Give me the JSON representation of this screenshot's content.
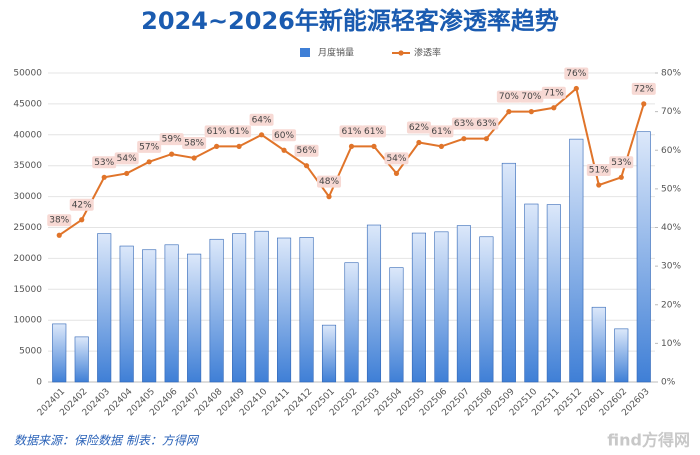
{
  "chart_data": {
    "type": "combo",
    "title": "2024~2026年新能源轻客渗透率趋势",
    "source": "数据来源：保险数据 制表：方得网",
    "watermark": "find方得网",
    "categories": [
      "202401",
      "202402",
      "202403",
      "202404",
      "202405",
      "202406",
      "202407",
      "202408",
      "202409",
      "202410",
      "202411",
      "202412",
      "202501",
      "202502",
      "202503",
      "202504",
      "202505",
      "202506",
      "202507",
      "202508",
      "202509",
      "202510",
      "202511",
      "202512",
      "202601",
      "202602",
      "202603"
    ],
    "series": [
      {
        "name": "月度销量",
        "type": "bar",
        "axis": "y",
        "color": "#3f7fd6",
        "values": [
          9400,
          7300,
          24000,
          22000,
          21400,
          22200,
          20700,
          23100,
          24000,
          24400,
          23300,
          23400,
          9200,
          19300,
          25400,
          18500,
          24100,
          24300,
          25300,
          23500,
          35400,
          28800,
          28700,
          39300,
          12100,
          8600,
          40500
        ]
      },
      {
        "name": "渗透率",
        "type": "line",
        "axis": "y2",
        "color": "#e0742a",
        "values": [
          38,
          42,
          53,
          54,
          57,
          59,
          58,
          61,
          61,
          64,
          60,
          56,
          48,
          61,
          61,
          54,
          62,
          61,
          63,
          63,
          70,
          70,
          71,
          76,
          51,
          53,
          72
        ],
        "value_labels": [
          "38%",
          "42%",
          "53%",
          "54%",
          "57%",
          "59%",
          "58%",
          "61%",
          "61%",
          "64%",
          "60%",
          "56%",
          "48%",
          "61%",
          "61%",
          "54%",
          "62%",
          "61%",
          "63%",
          "63%",
          "70%",
          "70%",
          "71%",
          "76%",
          "51%",
          "53%",
          "72%"
        ]
      }
    ],
    "ylim": [
      0,
      50000
    ],
    "yticks": [
      0,
      5000,
      10000,
      15000,
      20000,
      25000,
      30000,
      35000,
      40000,
      45000,
      50000
    ],
    "y2lim": [
      0,
      80
    ],
    "y2ticks": [
      {
        "value": 0,
        "label": "0%"
      },
      {
        "value": 10,
        "label": "10%"
      },
      {
        "value": 20,
        "label": "20%"
      },
      {
        "value": 30,
        "label": "30%"
      },
      {
        "value": 40,
        "label": "40%"
      },
      {
        "value": 50,
        "label": "50%"
      },
      {
        "value": 60,
        "label": "60%"
      },
      {
        "value": 70,
        "label": "70%"
      },
      {
        "value": 80,
        "label": "80%"
      }
    ],
    "grid": true,
    "legend": "top"
  }
}
